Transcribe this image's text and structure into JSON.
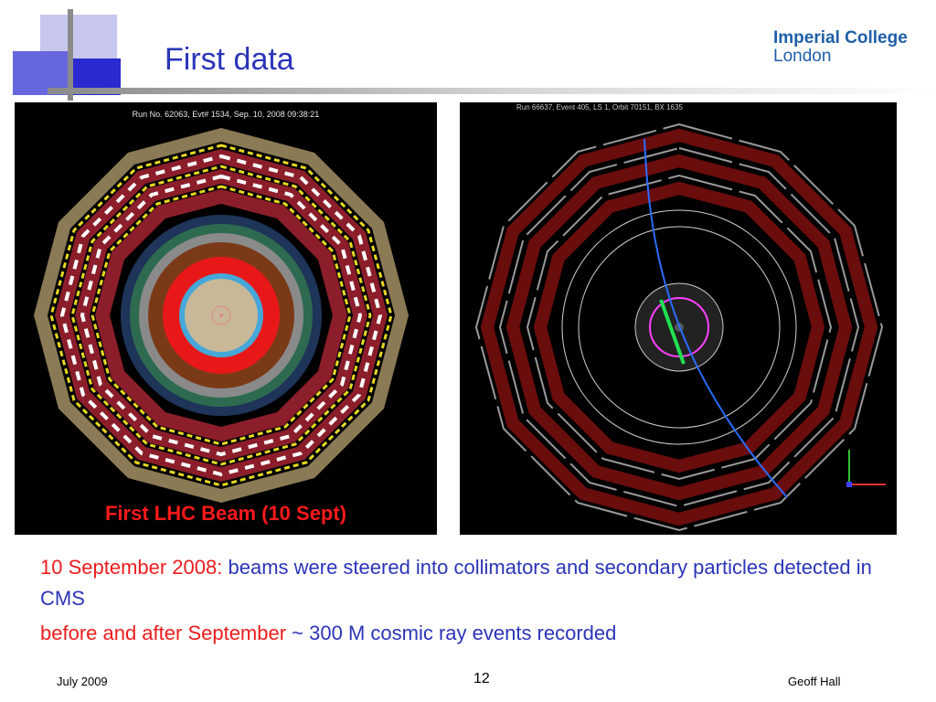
{
  "slide": {
    "title": "First data",
    "logo": {
      "line1": "Imperial College",
      "line2": "London"
    },
    "left_image": {
      "run_label": "Run No. 62063, Evt# 1534, Sep. 10, 2008  09:38:21",
      "caption": "First LHC Beam (10 Sept)"
    },
    "right_image": {
      "run_label": "Run 66637, Event 405, LS 1, Orbit 70151, BX 1635"
    },
    "bullets": [
      {
        "highlight": "10 September 2008:",
        "text": " beams were steered into collimators and secondary particles detected in CMS"
      },
      {
        "highlight": "before and after September",
        "text": " ~ 300 M cosmic ray events recorded"
      }
    ],
    "footer": {
      "date": "July 2009",
      "page": "12",
      "author": "Geoff Hall"
    },
    "colors": {
      "title": "#2b35b8",
      "highlight": "#ee1c1c",
      "deco": "#4a4ad8"
    }
  }
}
